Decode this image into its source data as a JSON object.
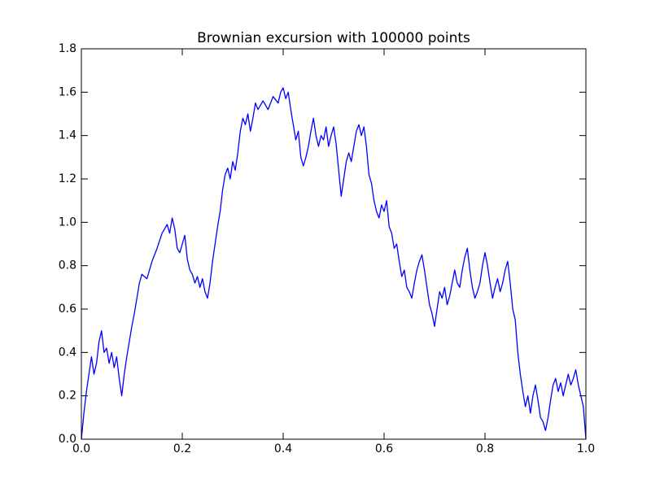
{
  "chart_data": {
    "type": "line",
    "title": "Brownian excursion with 100000 points",
    "x": [
      0,
      0.005,
      0.01,
      0.015,
      0.02,
      0.025,
      0.03,
      0.035,
      0.04,
      0.045,
      0.05,
      0.055,
      0.06,
      0.065,
      0.07,
      0.075,
      0.08,
      0.085,
      0.09,
      0.095,
      0.1,
      0.105,
      0.11,
      0.115,
      0.12,
      0.13,
      0.14,
      0.15,
      0.16,
      0.17,
      0.175,
      0.18,
      0.185,
      0.19,
      0.195,
      0.2,
      0.205,
      0.21,
      0.215,
      0.22,
      0.225,
      0.23,
      0.235,
      0.24,
      0.245,
      0.25,
      0.255,
      0.26,
      0.265,
      0.27,
      0.275,
      0.28,
      0.285,
      0.29,
      0.295,
      0.3,
      0.305,
      0.31,
      0.315,
      0.32,
      0.325,
      0.33,
      0.335,
      0.34,
      0.345,
      0.35,
      0.36,
      0.37,
      0.38,
      0.39,
      0.395,
      0.4,
      0.405,
      0.41,
      0.415,
      0.42,
      0.425,
      0.43,
      0.435,
      0.44,
      0.445,
      0.45,
      0.455,
      0.46,
      0.465,
      0.47,
      0.475,
      0.48,
      0.485,
      0.49,
      0.495,
      0.5,
      0.505,
      0.51,
      0.515,
      0.52,
      0.525,
      0.53,
      0.535,
      0.54,
      0.545,
      0.55,
      0.555,
      0.56,
      0.565,
      0.57,
      0.575,
      0.58,
      0.585,
      0.59,
      0.595,
      0.6,
      0.605,
      0.61,
      0.615,
      0.62,
      0.625,
      0.63,
      0.635,
      0.64,
      0.645,
      0.65,
      0.655,
      0.66,
      0.665,
      0.67,
      0.675,
      0.68,
      0.685,
      0.69,
      0.695,
      0.7,
      0.705,
      0.71,
      0.715,
      0.72,
      0.725,
      0.73,
      0.735,
      0.74,
      0.745,
      0.75,
      0.755,
      0.76,
      0.765,
      0.77,
      0.775,
      0.78,
      0.785,
      0.79,
      0.795,
      0.8,
      0.805,
      0.81,
      0.815,
      0.82,
      0.825,
      0.83,
      0.835,
      0.84,
      0.845,
      0.85,
      0.855,
      0.86,
      0.865,
      0.87,
      0.875,
      0.88,
      0.885,
      0.89,
      0.895,
      0.9,
      0.905,
      0.91,
      0.915,
      0.92,
      0.925,
      0.93,
      0.935,
      0.94,
      0.945,
      0.95,
      0.955,
      0.96,
      0.965,
      0.97,
      0.975,
      0.98,
      0.985,
      0.99,
      0.995,
      1.0
    ],
    "series": [
      {
        "color": "#0000ff",
        "values": [
          0,
          0.12,
          0.22,
          0.3,
          0.38,
          0.3,
          0.35,
          0.45,
          0.5,
          0.4,
          0.42,
          0.35,
          0.4,
          0.33,
          0.38,
          0.28,
          0.2,
          0.3,
          0.38,
          0.45,
          0.52,
          0.58,
          0.65,
          0.72,
          0.76,
          0.74,
          0.82,
          0.88,
          0.95,
          0.99,
          0.95,
          1.02,
          0.97,
          0.88,
          0.86,
          0.9,
          0.94,
          0.83,
          0.78,
          0.76,
          0.72,
          0.75,
          0.7,
          0.74,
          0.68,
          0.65,
          0.72,
          0.82,
          0.9,
          0.98,
          1.05,
          1.15,
          1.22,
          1.25,
          1.2,
          1.28,
          1.24,
          1.32,
          1.42,
          1.48,
          1.45,
          1.5,
          1.42,
          1.48,
          1.55,
          1.52,
          1.56,
          1.52,
          1.58,
          1.55,
          1.6,
          1.62,
          1.57,
          1.6,
          1.52,
          1.45,
          1.38,
          1.42,
          1.3,
          1.26,
          1.3,
          1.35,
          1.42,
          1.48,
          1.4,
          1.35,
          1.4,
          1.38,
          1.44,
          1.35,
          1.4,
          1.44,
          1.36,
          1.24,
          1.12,
          1.2,
          1.28,
          1.32,
          1.28,
          1.35,
          1.42,
          1.45,
          1.4,
          1.44,
          1.35,
          1.22,
          1.18,
          1.1,
          1.05,
          1.02,
          1.08,
          1.05,
          1.1,
          0.98,
          0.95,
          0.88,
          0.9,
          0.82,
          0.75,
          0.78,
          0.7,
          0.68,
          0.65,
          0.72,
          0.78,
          0.82,
          0.85,
          0.78,
          0.7,
          0.62,
          0.58,
          0.52,
          0.6,
          0.68,
          0.65,
          0.7,
          0.62,
          0.66,
          0.72,
          0.78,
          0.72,
          0.7,
          0.78,
          0.84,
          0.88,
          0.78,
          0.7,
          0.65,
          0.68,
          0.72,
          0.8,
          0.86,
          0.8,
          0.72,
          0.65,
          0.7,
          0.74,
          0.68,
          0.72,
          0.78,
          0.82,
          0.72,
          0.6,
          0.55,
          0.4,
          0.3,
          0.22,
          0.15,
          0.2,
          0.12,
          0.2,
          0.25,
          0.18,
          0.1,
          0.08,
          0.04,
          0.1,
          0.18,
          0.25,
          0.28,
          0.22,
          0.26,
          0.2,
          0.25,
          0.3,
          0.25,
          0.28,
          0.32,
          0.25,
          0.2,
          0.15,
          0
        ]
      }
    ],
    "xlim": [
      0,
      1
    ],
    "ylim": [
      0,
      1.8
    ],
    "xticks": [
      {
        "value": 0,
        "label": "0.0"
      },
      0.2,
      0.4,
      0.6,
      0.8,
      {
        "value": 1,
        "label": "1.0"
      }
    ],
    "yticks": [
      {
        "value": 0,
        "label": "0.0"
      },
      0.2,
      0.4,
      0.6,
      0.8,
      {
        "value": 1,
        "label": "1.0"
      },
      1.2,
      1.4,
      1.6,
      1.8
    ],
    "grid": false
  }
}
